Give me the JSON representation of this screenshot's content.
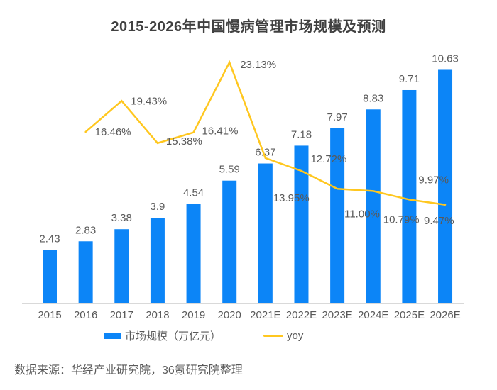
{
  "chart_data": {
    "type": "bar+line",
    "title": "2015-2026年中国慢病管理市场规模及预测",
    "categories": [
      "2015",
      "2016",
      "2017",
      "2018",
      "2019",
      "2020",
      "2021E",
      "2022E",
      "2023E",
      "2024E",
      "2025E",
      "2026E"
    ],
    "series": [
      {
        "name": "市场规模（万亿元）",
        "type": "bar",
        "color": "#0C85F7",
        "values": [
          2.43,
          2.83,
          3.38,
          3.9,
          4.54,
          5.59,
          6.37,
          7.18,
          7.97,
          8.83,
          9.71,
          10.63
        ],
        "labels": [
          "2.43",
          "2.83",
          "3.38",
          "3.9",
          "4.54",
          "5.59",
          "6.37",
          "7.18",
          "7.97",
          "8.83",
          "9.71",
          "10.63"
        ]
      },
      {
        "name": "yoy",
        "type": "line",
        "color": "#FFC71F",
        "values": [
          null,
          16.46,
          19.43,
          15.38,
          16.41,
          23.13,
          13.95,
          12.72,
          11.0,
          10.79,
          9.97,
          9.47
        ],
        "labels": [
          "",
          "16.46%",
          "19.43%",
          "15.38%",
          "16.41%",
          "23.13%",
          "13.95%",
          "12.72%",
          "11.00%",
          "10.79%",
          "9.97%",
          "9.47%"
        ]
      }
    ],
    "axes": {
      "x": {
        "labels_visible": true
      },
      "y_primary": {
        "min": 0,
        "max": 12,
        "visible": false
      },
      "y_secondary": {
        "min": 0,
        "max": 25.3,
        "unit": "%",
        "visible": false
      }
    },
    "grid": false,
    "legend_position": "bottom",
    "text_color": "#595959",
    "title_color": "#404040",
    "axis_line_color": "#D9D9D9"
  },
  "legend": {
    "items": [
      {
        "label": "市场规模（万亿元）",
        "color": "#0C85F7",
        "shape": "rect"
      },
      {
        "label": "yoy",
        "color": "#FFC71F",
        "shape": "line"
      }
    ]
  },
  "footer": {
    "source_note": "数据来源：华经产业研究院，36氪研究院整理"
  }
}
